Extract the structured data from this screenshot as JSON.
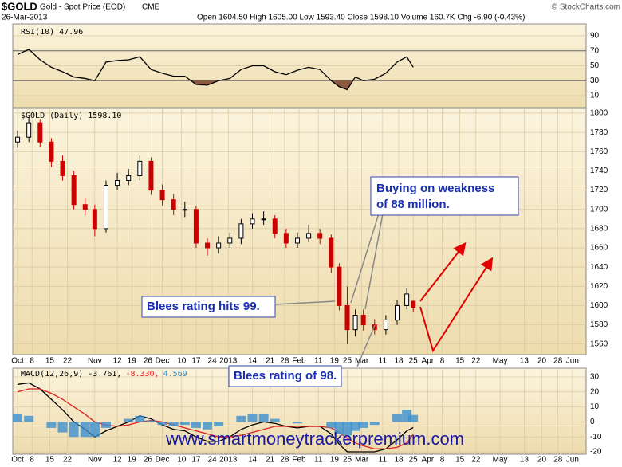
{
  "header": {
    "symbol": "$GOLD",
    "name": "Gold - Spot Price (EOD)",
    "exchange": "CME",
    "date": "26-Mar-2013",
    "quote": "Open 1604.50  High 1605.00  Low 1593.40  Close 1598.10  Volume 160.7K  Chg -6.90 (-0.43%)",
    "credit": "© StockCharts.com"
  },
  "chart_data": [
    {
      "type": "line",
      "label": "RSI(10) 47.96",
      "xlim": [
        -0.3,
        35.35
      ],
      "ylim": [
        -6,
        106
      ],
      "yticks": [
        10,
        30,
        50,
        70,
        90
      ],
      "bands": [
        30,
        70
      ],
      "grid": true,
      "x": [
        0,
        0.7,
        1.4,
        2.1,
        2.8,
        3.5,
        4.2,
        4.8,
        5.5,
        6.2,
        6.9,
        7.6,
        8.3,
        9.0,
        9.7,
        10.4,
        11.1,
        11.8,
        12.5,
        13.2,
        13.9,
        14.6,
        15.3,
        16.0,
        16.7,
        17.4,
        18.1,
        18.8,
        19.5,
        20.0,
        20.5,
        21.0,
        21.5,
        22.2,
        22.9,
        23.6,
        24.2,
        24.6
      ],
      "series": [
        {
          "name": "RSI(10)",
          "color": "#000000",
          "fill": "#8b5a3c",
          "values": [
            65,
            72,
            58,
            48,
            42,
            35,
            33,
            30,
            55,
            57,
            58,
            62,
            45,
            40,
            36,
            36,
            25,
            24,
            30,
            33,
            45,
            50,
            50,
            42,
            38,
            44,
            48,
            45,
            30,
            22,
            18,
            35,
            30,
            32,
            40,
            55,
            62,
            48
          ]
        }
      ]
    },
    {
      "type": "candlestick",
      "label": "$GOLD (Daily) 1598.10",
      "xlim": [
        -0.3,
        35.35
      ],
      "ylim": [
        1549,
        1805
      ],
      "yticks": [
        1560,
        1580,
        1600,
        1620,
        1640,
        1660,
        1680,
        1700,
        1720,
        1740,
        1760,
        1780,
        1800
      ],
      "grid": true,
      "up_color": "#000000",
      "down_color": "#cc0000",
      "xticks": [
        {
          "value": 0,
          "label": "Oct"
        },
        {
          "value": 0.9,
          "label": "8"
        },
        {
          "value": 2.0,
          "label": "15"
        },
        {
          "value": 3.1,
          "label": "22"
        },
        {
          "value": 4.8,
          "label": "Nov"
        },
        {
          "value": 6.2,
          "label": "12"
        },
        {
          "value": 7.1,
          "label": "19"
        },
        {
          "value": 8.1,
          "label": "26"
        },
        {
          "value": 9.0,
          "label": "Dec"
        },
        {
          "value": 10.2,
          "label": "10"
        },
        {
          "value": 11.1,
          "label": "17"
        },
        {
          "value": 12.1,
          "label": "24"
        },
        {
          "value": 13.1,
          "label": "2013"
        },
        {
          "value": 14.6,
          "label": "14"
        },
        {
          "value": 15.7,
          "label": "21"
        },
        {
          "value": 16.6,
          "label": "28"
        },
        {
          "value": 17.5,
          "label": "Feb"
        },
        {
          "value": 18.7,
          "label": "11"
        },
        {
          "value": 19.7,
          "label": "19"
        },
        {
          "value": 20.5,
          "label": "25"
        },
        {
          "value": 21.4,
          "label": "Mar"
        },
        {
          "value": 22.7,
          "label": "11"
        },
        {
          "value": 23.7,
          "label": "18"
        },
        {
          "value": 24.6,
          "label": "25"
        },
        {
          "value": 25.5,
          "label": "Apr"
        },
        {
          "value": 26.4,
          "label": "8"
        },
        {
          "value": 27.5,
          "label": "15"
        },
        {
          "value": 28.5,
          "label": "22"
        },
        {
          "value": 30.0,
          "label": "May"
        },
        {
          "value": 31.5,
          "label": "13"
        },
        {
          "value": 32.6,
          "label": "20"
        },
        {
          "value": 33.6,
          "label": "28"
        },
        {
          "value": 34.5,
          "label": "Jun"
        }
      ],
      "x": [
        0,
        0.7,
        1.4,
        2.1,
        2.8,
        3.5,
        4.2,
        4.8,
        5.5,
        6.2,
        6.9,
        7.6,
        8.3,
        9.0,
        9.7,
        10.4,
        11.1,
        11.8,
        12.5,
        13.2,
        13.9,
        14.6,
        15.3,
        16.0,
        16.7,
        17.4,
        18.1,
        18.8,
        19.5,
        20.0,
        20.5,
        21.0,
        21.5,
        22.2,
        22.9,
        23.6,
        24.2,
        24.6
      ],
      "open": [
        1770,
        1775,
        1790,
        1770,
        1750,
        1735,
        1705,
        1700,
        1680,
        1725,
        1730,
        1735,
        1750,
        1720,
        1710,
        1700,
        1700,
        1665,
        1660,
        1665,
        1670,
        1685,
        1690,
        1690,
        1675,
        1665,
        1670,
        1675,
        1670,
        1640,
        1600,
        1575,
        1590,
        1580,
        1575,
        1585,
        1600,
        1604.5
      ],
      "high": [
        1782,
        1796,
        1794,
        1774,
        1756,
        1740,
        1712,
        1705,
        1730,
        1738,
        1742,
        1756,
        1754,
        1726,
        1716,
        1708,
        1704,
        1670,
        1672,
        1676,
        1690,
        1696,
        1698,
        1694,
        1680,
        1676,
        1684,
        1680,
        1674,
        1644,
        1620,
        1596,
        1596,
        1586,
        1590,
        1606,
        1618,
        1605
      ],
      "low": [
        1764,
        1770,
        1765,
        1744,
        1730,
        1700,
        1694,
        1672,
        1676,
        1720,
        1725,
        1730,
        1715,
        1704,
        1694,
        1692,
        1660,
        1652,
        1654,
        1660,
        1664,
        1680,
        1684,
        1670,
        1660,
        1660,
        1666,
        1664,
        1634,
        1595,
        1560,
        1568,
        1574,
        1570,
        1570,
        1580,
        1596,
        1593.4
      ],
      "close": [
        1775,
        1790,
        1770,
        1750,
        1735,
        1705,
        1700,
        1680,
        1725,
        1730,
        1735,
        1750,
        1720,
        1710,
        1700,
        1700,
        1665,
        1660,
        1665,
        1670,
        1685,
        1690,
        1690,
        1675,
        1665,
        1670,
        1675,
        1670,
        1640,
        1600,
        1575,
        1590,
        1580,
        1575,
        1585,
        1600,
        1612,
        1598.1
      ]
    },
    {
      "type": "line",
      "xlim": [
        -0.3,
        35.35
      ],
      "ylim": [
        -21.6,
        35.8
      ],
      "yticks": [
        -20,
        -10,
        0,
        10,
        20,
        30
      ],
      "grid": true,
      "xticks": [
        {
          "value": 0,
          "label": "Oct"
        },
        {
          "value": 0.9,
          "label": "8"
        },
        {
          "value": 2.0,
          "label": "15"
        },
        {
          "value": 3.1,
          "label": "22"
        },
        {
          "value": 4.8,
          "label": "Nov"
        },
        {
          "value": 6.2,
          "label": "12"
        },
        {
          "value": 7.1,
          "label": "19"
        },
        {
          "value": 8.1,
          "label": "26"
        },
        {
          "value": 9.0,
          "label": "Dec"
        },
        {
          "value": 10.2,
          "label": "10"
        },
        {
          "value": 11.1,
          "label": "17"
        },
        {
          "value": 12.1,
          "label": "24"
        },
        {
          "value": 13.1,
          "label": "2013"
        },
        {
          "value": 14.6,
          "label": "14"
        },
        {
          "value": 15.7,
          "label": "21"
        },
        {
          "value": 16.6,
          "label": "28"
        },
        {
          "value": 17.5,
          "label": "Feb"
        },
        {
          "value": 18.7,
          "label": "11"
        },
        {
          "value": 19.7,
          "label": "19"
        },
        {
          "value": 20.5,
          "label": "25"
        },
        {
          "value": 21.4,
          "label": "Mar"
        },
        {
          "value": 22.7,
          "label": "11"
        },
        {
          "value": 23.7,
          "label": "18"
        },
        {
          "value": 24.6,
          "label": "25"
        },
        {
          "value": 25.5,
          "label": "Apr"
        },
        {
          "value": 26.4,
          "label": "8"
        },
        {
          "value": 27.5,
          "label": "15"
        },
        {
          "value": 28.5,
          "label": "22"
        },
        {
          "value": 30.0,
          "label": "May"
        },
        {
          "value": 31.5,
          "label": "13"
        },
        {
          "value": 32.6,
          "label": "20"
        },
        {
          "value": 33.6,
          "label": "28"
        },
        {
          "value": 34.5,
          "label": "Jun"
        }
      ],
      "x": [
        0,
        0.7,
        1.4,
        2.1,
        2.8,
        3.5,
        4.2,
        4.8,
        5.5,
        6.2,
        6.9,
        7.6,
        8.3,
        9.0,
        9.7,
        10.4,
        11.1,
        11.8,
        12.5,
        13.2,
        13.9,
        14.6,
        15.3,
        16.0,
        16.7,
        17.4,
        18.1,
        18.8,
        19.5,
        20.0,
        20.5,
        21.0,
        21.5,
        22.2,
        22.9,
        23.6,
        24.2,
        24.6
      ],
      "series": [
        {
          "name": "MACD(12,26,9) -3.761,",
          "color": "#000000",
          "style": "line",
          "values": [
            25,
            26,
            22,
            15,
            8,
            0,
            -5,
            -10,
            -6,
            -3,
            0,
            4,
            2,
            -2,
            -5,
            -6,
            -10,
            -13,
            -13,
            -10,
            -5,
            -2,
            0,
            -1,
            -3,
            -4,
            -3,
            -3,
            -8,
            -15,
            -20,
            -20,
            -20,
            -20,
            -18,
            -12,
            -6,
            -3.8
          ]
        },
        {
          "name": "-8.330,",
          "color": "#e02020",
          "style": "line",
          "values": [
            20,
            22,
            22,
            19,
            15,
            10,
            5,
            0,
            -2,
            -3,
            -2,
            0,
            1,
            0,
            -2,
            -4,
            -6,
            -8,
            -10,
            -10,
            -9,
            -7,
            -5,
            -3,
            -3,
            -3,
            -3,
            -3,
            -4,
            -7,
            -11,
            -14,
            -16,
            -18,
            -18,
            -17,
            -14,
            -8.3
          ]
        },
        {
          "name": "4.569",
          "color": "#3b8fd0",
          "style": "bar",
          "values": [
            5,
            4,
            0,
            -4,
            -7,
            -10,
            -10,
            -10,
            -4,
            0,
            2,
            4,
            1,
            -2,
            -3,
            -2,
            -4,
            -5,
            -3,
            0,
            4,
            5,
            5,
            2,
            0,
            -1,
            0,
            0,
            -4,
            -8,
            -9,
            -6,
            -4,
            -2,
            0,
            5,
            8,
            4.6
          ]
        }
      ]
    }
  ],
  "annotations": {
    "buying": [
      "Buying on weakness",
      "of 88 million."
    ],
    "hits99": "Blees rating hits 99.",
    "of98": "Blees rating of 98."
  },
  "watermark": "www.smartmoneytrackerpremium.com"
}
